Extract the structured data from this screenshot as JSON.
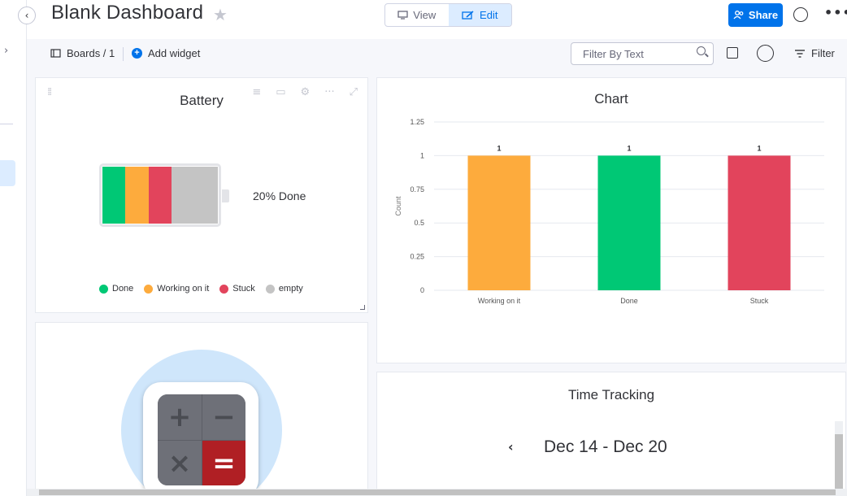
{
  "header": {
    "title": "Blank Dashboard",
    "view_label": "View",
    "edit_label": "Edit",
    "share_label": "Share"
  },
  "toolbar": {
    "boards_label": "Boards / 1",
    "add_widget_label": "Add widget",
    "filter_placeholder": "Filter By Text",
    "filter_label": "Filter"
  },
  "battery_widget": {
    "title": "Battery",
    "done_label": "20% Done",
    "segments": [
      {
        "status": "Done",
        "fraction": 0.2,
        "color": "#00c875"
      },
      {
        "status": "Working on it",
        "fraction": 0.2,
        "color": "#fdab3d"
      },
      {
        "status": "Stuck",
        "fraction": 0.2,
        "color": "#e2445c"
      },
      {
        "status": "empty",
        "fraction": 0.4,
        "color": "#c4c4c4"
      }
    ],
    "legend": [
      {
        "label": "Done",
        "color": "#00c875"
      },
      {
        "label": "Working on it",
        "color": "#fdab3d"
      },
      {
        "label": "Stuck",
        "color": "#e2445c"
      },
      {
        "label": "empty",
        "color": "#c4c4c4"
      }
    ]
  },
  "chart_widget": {
    "title": "Chart"
  },
  "chart_data": {
    "type": "bar",
    "title": "Chart",
    "categories": [
      "Working on it",
      "Done",
      "Stuck"
    ],
    "values": [
      1,
      1,
      1
    ],
    "colors": [
      "#fdab3d",
      "#00c875",
      "#e2445c"
    ],
    "ylabel": "Count",
    "xlabel": "",
    "ylim": [
      0,
      1.25
    ],
    "yticks": [
      "1.25",
      "1",
      "0.75",
      "0.5",
      "0.25",
      "0"
    ],
    "data_labels": [
      "1",
      "1",
      "1"
    ],
    "grid": true
  },
  "time_widget": {
    "title": "Time Tracking",
    "date_range": "Dec 14 - Dec 20",
    "prev_label": "‹"
  },
  "calculator_widget": {
    "icon": "calculator-icon",
    "keys": [
      "+",
      "−",
      "×",
      "="
    ]
  }
}
